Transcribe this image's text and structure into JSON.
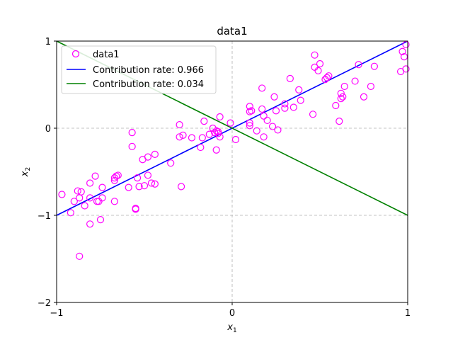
{
  "chart_data": {
    "type": "scatter",
    "title": "data1",
    "xlabel": "x",
    "xlabel_sub": "1",
    "ylabel": "x",
    "ylabel_sub": "2",
    "xlim": [
      -1,
      1
    ],
    "ylim": [
      -2,
      1
    ],
    "xticks": [
      -1,
      0,
      1
    ],
    "yticks": [
      -2,
      -1,
      0,
      1
    ],
    "xtick_labels": [
      "−1",
      "0",
      "1"
    ],
    "ytick_labels": [
      "−2",
      "−1",
      "0",
      "1"
    ],
    "grid": "dashed lines at x=0 and y=-1, 0, 1",
    "legend_position": "upper-left",
    "colors": {
      "scatter": "#ff00ff",
      "line1": "#0000ff",
      "line2": "#008000",
      "grid": "#b0b0b0"
    },
    "series": [
      {
        "name": "data1",
        "kind": "scatter",
        "marker": "hollow-circle",
        "points": [
          [
            -0.97,
            -0.76
          ],
          [
            -0.92,
            -0.97
          ],
          [
            -0.9,
            -0.84
          ],
          [
            -0.88,
            -0.72
          ],
          [
            -0.87,
            -0.8
          ],
          [
            -0.86,
            -0.73
          ],
          [
            -0.87,
            -1.47
          ],
          [
            -0.84,
            -0.89
          ],
          [
            -0.81,
            -0.63
          ],
          [
            -0.81,
            -0.8
          ],
          [
            -0.81,
            -1.1
          ],
          [
            -0.78,
            -0.55
          ],
          [
            -0.77,
            -0.84
          ],
          [
            -0.76,
            -0.84
          ],
          [
            -0.75,
            -1.05
          ],
          [
            -0.74,
            -0.68
          ],
          [
            -0.74,
            -0.8
          ],
          [
            -0.67,
            -0.6
          ],
          [
            -0.67,
            -0.57
          ],
          [
            -0.67,
            -0.84
          ],
          [
            -0.66,
            -0.55
          ],
          [
            -0.65,
            -0.54
          ],
          [
            -0.59,
            -0.68
          ],
          [
            -0.57,
            -0.05
          ],
          [
            -0.57,
            -0.21
          ],
          [
            -0.55,
            -0.93
          ],
          [
            -0.55,
            -0.92
          ],
          [
            -0.54,
            -0.57
          ],
          [
            -0.53,
            -0.67
          ],
          [
            -0.51,
            -0.36
          ],
          [
            -0.5,
            -0.66
          ],
          [
            -0.48,
            -0.54
          ],
          [
            -0.48,
            -0.33
          ],
          [
            -0.46,
            -0.63
          ],
          [
            -0.44,
            -0.64
          ],
          [
            -0.44,
            -0.3
          ],
          [
            -0.35,
            -0.4
          ],
          [
            -0.3,
            0.04
          ],
          [
            -0.3,
            -0.1
          ],
          [
            -0.29,
            -0.67
          ],
          [
            -0.28,
            -0.08
          ],
          [
            -0.23,
            -0.11
          ],
          [
            -0.18,
            -0.22
          ],
          [
            -0.17,
            -0.11
          ],
          [
            -0.16,
            0.08
          ],
          [
            -0.13,
            -0.07
          ],
          [
            -0.11,
            0.0
          ],
          [
            -0.1,
            -0.05
          ],
          [
            -0.09,
            -0.03
          ],
          [
            -0.09,
            -0.25
          ],
          [
            -0.08,
            -0.04
          ],
          [
            -0.08,
            -0.06
          ],
          [
            -0.07,
            -0.1
          ],
          [
            -0.07,
            0.13
          ],
          [
            -0.01,
            0.06
          ],
          [
            0.02,
            -0.13
          ],
          [
            0.1,
            0.19
          ],
          [
            0.1,
            0.25
          ],
          [
            0.11,
            0.2
          ],
          [
            0.1,
            0.06
          ],
          [
            0.1,
            0.03
          ],
          [
            0.14,
            -0.03
          ],
          [
            0.17,
            0.22
          ],
          [
            0.17,
            0.46
          ],
          [
            0.18,
            0.14
          ],
          [
            0.18,
            -0.1
          ],
          [
            0.2,
            0.09
          ],
          [
            0.23,
            0.02
          ],
          [
            0.24,
            0.36
          ],
          [
            0.25,
            0.2
          ],
          [
            0.26,
            -0.02
          ],
          [
            0.3,
            0.23
          ],
          [
            0.3,
            0.28
          ],
          [
            0.33,
            0.57
          ],
          [
            0.35,
            0.24
          ],
          [
            0.38,
            0.44
          ],
          [
            0.39,
            0.32
          ],
          [
            0.46,
            0.16
          ],
          [
            0.47,
            0.84
          ],
          [
            0.47,
            0.7
          ],
          [
            0.49,
            0.66
          ],
          [
            0.5,
            0.74
          ],
          [
            0.53,
            0.56
          ],
          [
            0.54,
            0.58
          ],
          [
            0.55,
            0.6
          ],
          [
            0.59,
            0.26
          ],
          [
            0.61,
            0.08
          ],
          [
            0.62,
            0.4
          ],
          [
            0.62,
            0.34
          ],
          [
            0.63,
            0.36
          ],
          [
            0.64,
            0.48
          ],
          [
            0.7,
            0.54
          ],
          [
            0.72,
            0.73
          ],
          [
            0.75,
            0.36
          ],
          [
            0.79,
            0.48
          ],
          [
            0.81,
            0.71
          ],
          [
            0.96,
            0.65
          ],
          [
            0.97,
            0.88
          ],
          [
            0.98,
            0.82
          ],
          [
            0.99,
            0.68
          ],
          [
            0.99,
            0.96
          ]
        ]
      },
      {
        "name": "Contribution rate: 0.966",
        "kind": "line",
        "points": [
          [
            -1,
            -1
          ],
          [
            1,
            1
          ]
        ]
      },
      {
        "name": "Contribution rate: 0.034",
        "kind": "line",
        "points": [
          [
            -1,
            1
          ],
          [
            1,
            -1
          ]
        ]
      }
    ]
  }
}
